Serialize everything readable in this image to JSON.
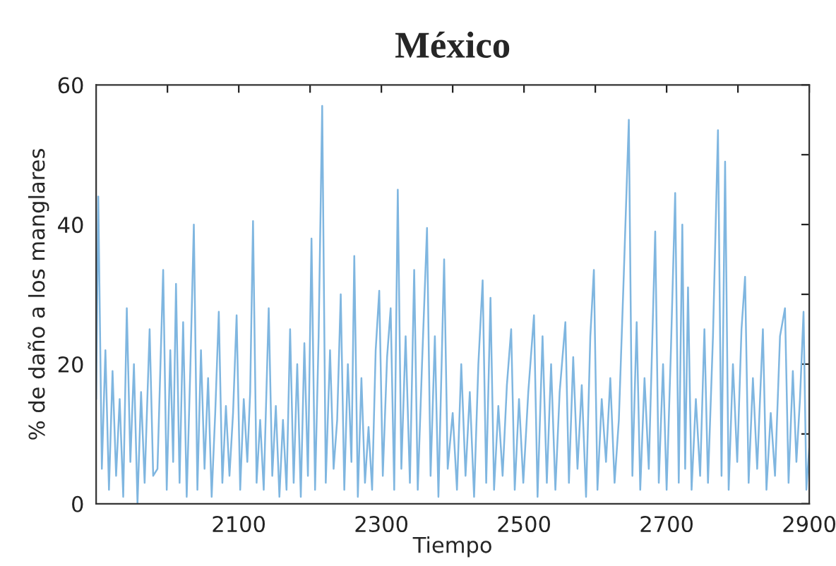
{
  "chart_data": {
    "type": "line",
    "title": "México",
    "xlabel": "Tiempo",
    "ylabel": "% de daño a los manglares",
    "xlim": [
      1900,
      2900
    ],
    "ylim": [
      0,
      60
    ],
    "xticks": [
      {
        "value": 2000,
        "label": null
      },
      2100,
      {
        "value": 2200,
        "label": null
      },
      2300,
      {
        "value": 2400,
        "label": null
      },
      2500,
      {
        "value": 2600,
        "label": null
      },
      2700,
      {
        "value": 2800,
        "label": null
      },
      2900
    ],
    "yticks": [
      0,
      {
        "value": 10,
        "label": null
      },
      20,
      {
        "value": 30,
        "label": null
      },
      40,
      {
        "value": 50,
        "label": null
      },
      60
    ],
    "grid": false,
    "marker": "none",
    "line_style": "solid",
    "series": [
      {
        "color": "#7fb6e0",
        "x": [
          1900,
          1903,
          1908,
          1913,
          1918,
          1923,
          1928,
          1933,
          1938,
          1943,
          1948,
          1953,
          1958,
          1963,
          1968,
          1975,
          1980,
          1986,
          1994,
          1999,
          2004,
          2008,
          2012,
          2017,
          2022,
          2027,
          2032,
          2037,
          2042,
          2047,
          2052,
          2057,
          2062,
          2067,
          2072,
          2077,
          2082,
          2087,
          2092,
          2097,
          2102,
          2107,
          2112,
          2116,
          2120,
          2125,
          2130,
          2135,
          2142,
          2147,
          2152,
          2157,
          2162,
          2167,
          2172,
          2177,
          2182,
          2187,
          2192,
          2197,
          2202,
          2207,
          2212,
          2217,
          2222,
          2228,
          2233,
          2238,
          2243,
          2248,
          2253,
          2258,
          2262,
          2267,
          2272,
          2277,
          2282,
          2287,
          2292,
          2297,
          2302,
          2308,
          2313,
          2318,
          2323,
          2328,
          2334,
          2340,
          2346,
          2351,
          2357,
          2364,
          2369,
          2375,
          2380,
          2388,
          2393,
          2400,
          2406,
          2412,
          2418,
          2424,
          2430,
          2436,
          2442,
          2447,
          2453,
          2458,
          2464,
          2470,
          2476,
          2482,
          2487,
          2493,
          2499,
          2506,
          2514,
          2519,
          2526,
          2532,
          2538,
          2544,
          2550,
          2558,
          2563,
          2569,
          2575,
          2581,
          2587,
          2593,
          2598,
          2603,
          2609,
          2615,
          2621,
          2627,
          2633,
          2640,
          2647,
          2652,
          2658,
          2663,
          2669,
          2675,
          2684,
          2689,
          2695,
          2700,
          2706,
          2712,
          2717,
          2722,
          2726,
          2730,
          2735,
          2741,
          2747,
          2753,
          2758,
          2765,
          2772,
          2777,
          2782,
          2787,
          2793,
          2799,
          2805,
          2810,
          2815,
          2821,
          2827,
          2835,
          2840,
          2846,
          2852,
          2859,
          2866,
          2871,
          2877,
          2882,
          2887,
          2892,
          2896,
          2900
        ],
        "values": [
          15,
          44,
          5,
          22,
          2,
          19,
          4,
          15,
          1,
          28,
          6,
          20,
          0,
          16,
          3,
          25,
          4,
          5,
          33.5,
          2,
          22,
          6,
          31.5,
          3,
          26,
          1,
          19,
          40,
          2,
          22,
          5,
          18,
          1,
          13,
          27.5,
          3,
          14,
          4,
          13,
          27,
          2,
          15,
          6,
          16,
          40.5,
          3,
          12,
          2,
          28,
          4,
          14,
          1,
          12,
          2,
          25,
          3,
          20,
          1,
          23,
          4,
          38,
          2,
          24,
          57,
          3,
          22,
          5,
          12,
          30,
          2,
          20,
          6,
          35.5,
          1,
          18,
          3,
          11,
          2,
          22,
          30.5,
          4,
          21,
          28,
          2,
          45,
          5,
          24,
          3,
          33.5,
          2,
          20,
          39.5,
          4,
          24,
          1,
          35,
          5,
          13,
          2,
          20,
          4,
          16,
          1,
          20,
          32,
          3,
          29.5,
          2,
          14,
          4,
          17,
          25,
          2,
          15,
          3,
          16,
          27,
          1,
          24,
          3,
          20,
          2,
          16,
          26,
          3,
          21,
          5,
          17,
          1,
          24,
          33.5,
          2,
          15,
          6,
          18,
          3,
          12,
          33,
          55,
          4,
          26,
          2,
          18,
          5,
          39,
          3,
          20,
          2,
          22,
          44.5,
          3,
          40,
          5,
          31,
          2,
          15,
          4,
          25,
          3,
          24,
          53.5,
          4,
          49,
          2,
          20,
          6,
          25,
          32.5,
          3,
          18,
          5,
          25,
          2,
          13,
          4,
          24,
          28,
          3,
          19,
          6,
          15,
          27.5,
          2,
          8
        ]
      }
    ]
  }
}
